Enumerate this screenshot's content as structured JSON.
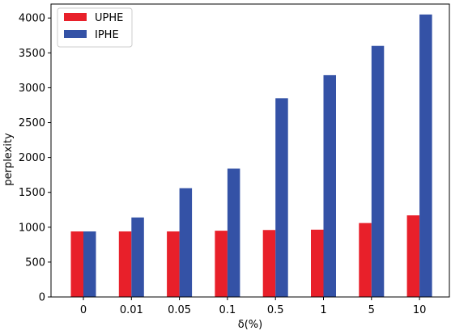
{
  "chart_data": {
    "type": "bar",
    "title": "",
    "xlabel": "δ(%)",
    "ylabel": "perplexity",
    "categories": [
      "0",
      "0.01",
      "0.05",
      "0.1",
      "0.5",
      "1",
      "5",
      "10"
    ],
    "series": [
      {
        "name": "UPHE",
        "color": "#e8202a",
        "values": [
          940,
          940,
          940,
          950,
          960,
          965,
          1060,
          1170
        ]
      },
      {
        "name": "IPHE",
        "color": "#3452a6",
        "values": [
          940,
          1140,
          1560,
          1840,
          2850,
          3180,
          3600,
          4050
        ]
      }
    ],
    "ylim": [
      0,
      4200
    ],
    "yticks": [
      "0",
      "500",
      "1000",
      "1500",
      "2000",
      "2500",
      "3000",
      "3500",
      "4000"
    ],
    "grid": false,
    "legend_position": "top-left"
  }
}
